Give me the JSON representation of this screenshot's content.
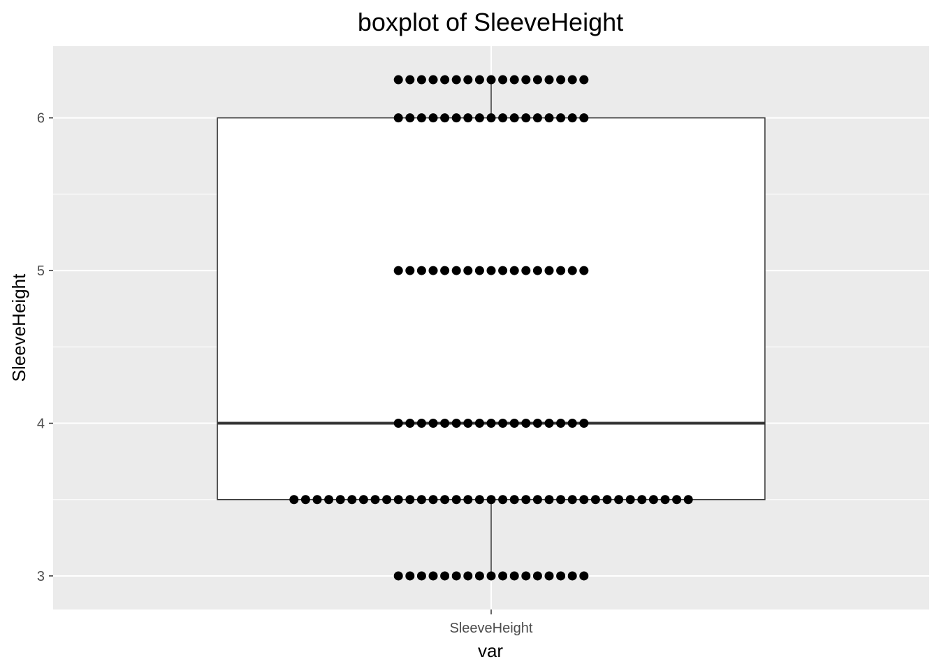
{
  "chart_data": {
    "type": "boxplot",
    "title": "boxplot of SleeveHeight",
    "xlabel": "var",
    "ylabel": "SleeveHeight",
    "categories": [
      "SleeveHeight"
    ],
    "ylim": [
      2.78,
      6.47
    ],
    "yticks": [
      3,
      4,
      5,
      6
    ],
    "grid": true,
    "box": {
      "q1": 3.5,
      "median": 4,
      "q3": 6,
      "whisker_low": 3,
      "whisker_high": 6.25
    },
    "points": [
      {
        "y": 3,
        "count": 17
      },
      {
        "y": 3.5,
        "count": 35
      },
      {
        "y": 4,
        "count": 17
      },
      {
        "y": 5,
        "count": 17
      },
      {
        "y": 6,
        "count": 17
      },
      {
        "y": 6.25,
        "count": 17
      }
    ],
    "colors": {
      "panel": "#ebebeb",
      "grid_major": "#ffffff",
      "box_fill": "#ffffff",
      "box_line": "#333333",
      "points": "#000000",
      "tick_text": "#4d4d4d"
    }
  }
}
